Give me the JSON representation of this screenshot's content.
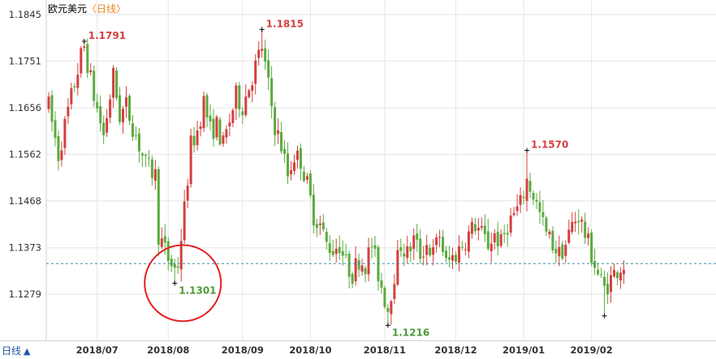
{
  "title": {
    "instrument": "欧元美元",
    "period": "〈日线〉"
  },
  "period_selector": {
    "label": "日线",
    "arrow": "▲"
  },
  "colors": {
    "up": "#d43f3f",
    "down": "#5bab3f",
    "grid": "#e6e6e6",
    "reference_line": "#3a8fa0",
    "circle": "#e02020"
  },
  "chart_data": {
    "type": "candlestick",
    "y_ticks": [
      "1.1845",
      "1.1751",
      "1.1656",
      "1.1562",
      "1.1468",
      "1.1373",
      "1.1279"
    ],
    "ylim": [
      1.1185,
      1.1845
    ],
    "x_ticks": [
      {
        "label": "2018/07",
        "index": 15
      },
      {
        "label": "2018/08",
        "index": 37
      },
      {
        "label": "2018/09",
        "index": 60
      },
      {
        "label": "2018/10",
        "index": 81
      },
      {
        "label": "2018/11",
        "index": 104
      },
      {
        "label": "2018/12",
        "index": 126
      },
      {
        "label": "2019/01",
        "index": 147
      },
      {
        "label": "2019/02",
        "index": 168
      }
    ],
    "reference_value": 1.1341,
    "annotations": [
      {
        "label": "1.1791",
        "index": 11,
        "value": 1.1791,
        "kind": "high"
      },
      {
        "label": "1.1301",
        "index": 39,
        "value": 1.1301,
        "kind": "low"
      },
      {
        "label": "1.1815",
        "index": 66,
        "value": 1.1815,
        "kind": "high"
      },
      {
        "label": "1.1216",
        "index": 105,
        "value": 1.1216,
        "kind": "low"
      },
      {
        "label": "1.1570",
        "index": 148,
        "value": 1.157,
        "kind": "high"
      },
      {
        "label": "1.1235",
        "index": 172,
        "value": 1.1235,
        "kind": "low_unlabeled"
      }
    ],
    "highlight_circle": {
      "index": 40,
      "value": 1.1321
    },
    "anchors": [
      [
        0,
        1.166
      ],
      [
        3,
        1.156
      ],
      [
        6,
        1.165
      ],
      [
        10,
        1.176
      ],
      [
        11,
        1.178
      ],
      [
        14,
        1.168
      ],
      [
        17,
        1.16
      ],
      [
        20,
        1.172
      ],
      [
        22,
        1.164
      ],
      [
        24,
        1.166
      ],
      [
        27,
        1.16
      ],
      [
        30,
        1.154
      ],
      [
        33,
        1.152
      ],
      [
        34,
        1.14
      ],
      [
        37,
        1.135
      ],
      [
        39,
        1.133
      ],
      [
        40,
        1.134
      ],
      [
        42,
        1.145
      ],
      [
        44,
        1.158
      ],
      [
        46,
        1.161
      ],
      [
        48,
        1.167
      ],
      [
        50,
        1.161
      ],
      [
        52,
        1.162
      ],
      [
        54,
        1.158
      ],
      [
        56,
        1.163
      ],
      [
        58,
        1.168
      ],
      [
        60,
        1.166
      ],
      [
        62,
        1.17
      ],
      [
        64,
        1.174
      ],
      [
        66,
        1.178
      ],
      [
        68,
        1.17
      ],
      [
        70,
        1.162
      ],
      [
        72,
        1.158
      ],
      [
        74,
        1.152
      ],
      [
        76,
        1.156
      ],
      [
        78,
        1.155
      ],
      [
        80,
        1.15
      ],
      [
        82,
        1.144
      ],
      [
        84,
        1.142
      ],
      [
        86,
        1.138
      ],
      [
        88,
        1.137
      ],
      [
        90,
        1.138
      ],
      [
        92,
        1.134
      ],
      [
        94,
        1.132
      ],
      [
        96,
        1.135
      ],
      [
        98,
        1.134
      ],
      [
        100,
        1.138
      ],
      [
        102,
        1.132
      ],
      [
        104,
        1.127
      ],
      [
        105,
        1.125
      ],
      [
        107,
        1.132
      ],
      [
        109,
        1.138
      ],
      [
        111,
        1.136
      ],
      [
        113,
        1.139
      ],
      [
        115,
        1.136
      ],
      [
        117,
        1.138
      ],
      [
        119,
        1.136
      ],
      [
        121,
        1.14
      ],
      [
        123,
        1.134
      ],
      [
        126,
        1.136
      ],
      [
        128,
        1.138
      ],
      [
        130,
        1.14
      ],
      [
        132,
        1.142
      ],
      [
        134,
        1.14
      ],
      [
        136,
        1.138
      ],
      [
        138,
        1.14
      ],
      [
        140,
        1.138
      ],
      [
        142,
        1.142
      ],
      [
        144,
        1.144
      ],
      [
        146,
        1.146
      ],
      [
        148,
        1.151
      ],
      [
        150,
        1.148
      ],
      [
        152,
        1.144
      ],
      [
        154,
        1.14
      ],
      [
        156,
        1.138
      ],
      [
        158,
        1.136
      ],
      [
        160,
        1.138
      ],
      [
        162,
        1.142
      ],
      [
        164,
        1.144
      ],
      [
        166,
        1.14
      ],
      [
        168,
        1.136
      ],
      [
        170,
        1.132
      ],
      [
        172,
        1.129
      ],
      [
        174,
        1.131
      ],
      [
        176,
        1.133
      ],
      [
        178,
        1.134
      ]
    ],
    "n_candles": 179
  }
}
